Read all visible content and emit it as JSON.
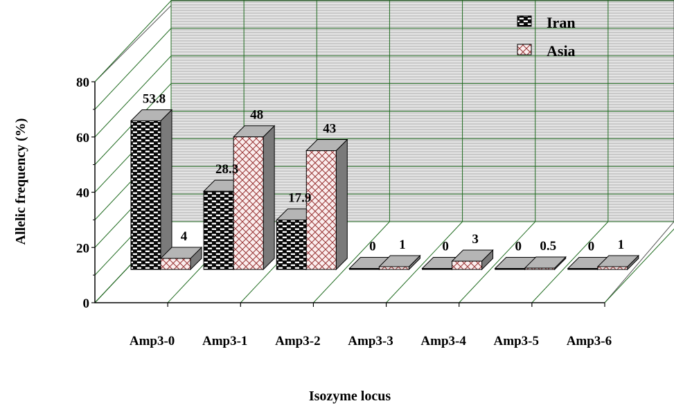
{
  "chart_data": {
    "type": "bar",
    "style": "3d-clustered",
    "xlabel": "Isozyme locus",
    "ylabel": "Allelic frequency (%)",
    "ylim": [
      0,
      80
    ],
    "yticks": [
      "0",
      "20",
      "40",
      "60",
      "80"
    ],
    "categories": [
      "Amp3-0",
      "Amp3-1",
      "Amp3-2",
      "Amp3-3",
      "Amp3-4",
      "Amp3-5",
      "Amp3-6"
    ],
    "series": [
      {
        "name": "Iran",
        "pattern": "brick",
        "color": "#000000",
        "values": [
          53.8,
          28.3,
          17.9,
          0,
          0,
          0,
          0
        ],
        "labels": [
          "53.8",
          "28.3",
          "17.9",
          "0",
          "0",
          "0",
          "0"
        ]
      },
      {
        "name": "Asia",
        "pattern": "lattice",
        "color": "#9b3a3a",
        "values": [
          4,
          48,
          43,
          1,
          3,
          0.5,
          1
        ],
        "labels": [
          "4",
          "48",
          "43",
          "1",
          "3",
          "0.5",
          "1"
        ]
      }
    ],
    "grid": true,
    "legend_position": "top-right",
    "wall_color": "#d8d8d8",
    "grid_color": "#1f6b1f"
  }
}
